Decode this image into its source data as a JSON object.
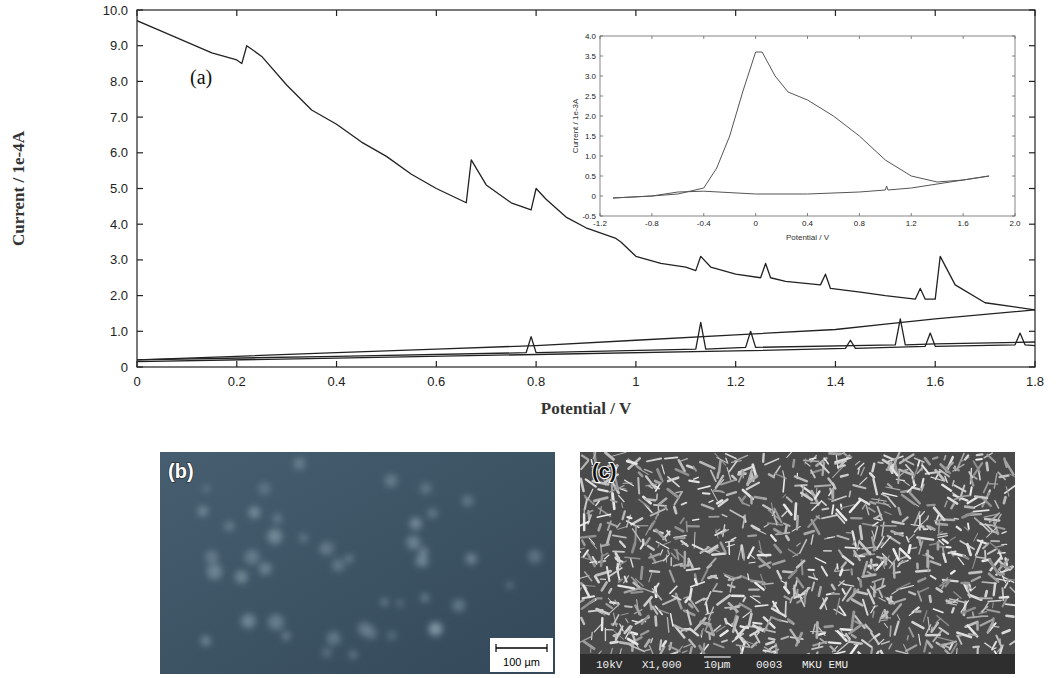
{
  "chart_data": [
    {
      "type": "line",
      "xlabel": "Potential / V",
      "ylabel": "Current / 1e-4A",
      "annotations": [
        "(a)"
      ],
      "xlim": [
        0,
        1.8
      ],
      "ylim": [
        0,
        10
      ],
      "xticks": [
        0,
        0.2,
        0.4,
        0.6,
        0.8,
        1.0,
        1.2,
        1.4,
        1.6,
        1.8
      ],
      "yticks": [
        0,
        {
          "value": 1,
          "label": "1.0"
        },
        {
          "value": 2,
          "label": "2.0"
        },
        {
          "value": 3,
          "label": "3.0"
        },
        {
          "value": 4,
          "label": "4.0"
        },
        {
          "value": 5,
          "label": "5.0"
        },
        {
          "value": 6,
          "label": "6.0"
        },
        {
          "value": 7,
          "label": "7.0"
        },
        {
          "value": 8,
          "label": "8.0"
        },
        {
          "value": 9,
          "label": "9.0"
        },
        {
          "value": 10,
          "label": "10.0"
        }
      ],
      "grid": false,
      "series": [
        {
          "color": "#222222",
          "x": [
            0,
            0.05,
            0.1,
            0.15,
            0.2,
            0.21,
            0.22,
            0.25,
            0.3,
            0.35,
            0.4,
            0.45,
            0.5,
            0.55,
            0.6,
            0.66,
            0.67,
            0.7,
            0.75,
            0.79,
            0.8,
            0.82,
            0.86,
            0.9,
            0.96,
            0.97,
            1.0,
            1.05,
            1.1,
            1.12,
            1.13,
            1.15,
            1.2,
            1.25,
            1.26,
            1.27,
            1.3,
            1.37,
            1.38,
            1.39,
            1.45,
            1.5,
            1.56,
            1.57,
            1.58,
            1.6,
            1.61,
            1.64,
            1.7,
            1.8
          ],
          "values": [
            9.7,
            9.4,
            9.1,
            8.8,
            8.6,
            8.5,
            9.0,
            8.7,
            7.9,
            7.2,
            6.8,
            6.3,
            5.9,
            5.4,
            5.0,
            4.6,
            5.8,
            5.1,
            4.6,
            4.4,
            5.0,
            4.7,
            4.2,
            3.9,
            3.6,
            3.5,
            3.1,
            2.9,
            2.8,
            2.7,
            3.1,
            2.8,
            2.6,
            2.5,
            2.9,
            2.5,
            2.4,
            2.3,
            2.6,
            2.2,
            2.1,
            2.0,
            1.9,
            2.2,
            1.9,
            1.9,
            3.1,
            2.3,
            1.8,
            1.6
          ]
        },
        {
          "color": "#222222",
          "x": [
            1.8,
            1.6,
            1.5,
            1.4,
            1.2,
            1.0,
            0.8,
            0.6,
            0.4,
            0.2,
            0
          ],
          "values": [
            1.6,
            1.35,
            1.2,
            1.05,
            0.9,
            0.75,
            0.6,
            0.5,
            0.4,
            0.3,
            0.2
          ]
        },
        {
          "color": "#222222",
          "x": [
            0,
            0.4,
            0.78,
            0.79,
            0.8,
            1.12,
            1.13,
            1.14,
            1.22,
            1.23,
            1.24,
            1.52,
            1.53,
            1.54,
            1.6,
            1.8
          ],
          "values": [
            0.2,
            0.3,
            0.4,
            0.85,
            0.4,
            0.5,
            1.25,
            0.5,
            0.55,
            1.0,
            0.55,
            0.62,
            1.35,
            0.62,
            0.65,
            0.7
          ]
        },
        {
          "color": "#222222",
          "x": [
            0,
            0.4,
            0.8,
            1.2,
            1.42,
            1.43,
            1.44,
            1.58,
            1.59,
            1.6,
            1.76,
            1.77,
            1.78,
            1.8
          ],
          "values": [
            0.15,
            0.25,
            0.35,
            0.45,
            0.52,
            0.75,
            0.52,
            0.58,
            0.95,
            0.58,
            0.62,
            0.95,
            0.62,
            0.6
          ]
        }
      ]
    },
    {
      "type": "line",
      "xlabel": "Potential / V",
      "ylabel": "Current / 1e-3A",
      "xlim": [
        -1.2,
        2.0
      ],
      "ylim": [
        -0.5,
        4.0
      ],
      "xticks": [
        -1.2,
        -0.8,
        -0.4,
        0,
        0.4,
        0.8,
        1.2,
        1.6,
        {
          "value": 2,
          "label": "2.0"
        }
      ],
      "yticks": [
        -0.5,
        0,
        0.5,
        {
          "value": 1,
          "label": "1.0"
        },
        1.5,
        {
          "value": 2,
          "label": "2.0"
        },
        2.5,
        {
          "value": 3,
          "label": "3.0"
        },
        3.5,
        {
          "value": 4,
          "label": "4.0"
        }
      ],
      "grid": false,
      "series": [
        {
          "color": "#555555",
          "x": [
            -1.1,
            -0.8,
            -0.6,
            -0.4,
            -0.3,
            -0.2,
            -0.1,
            0,
            0.05,
            0.15,
            0.25,
            0.4,
            0.6,
            0.8,
            1.0,
            1.2,
            1.4,
            1.6,
            1.8
          ],
          "values": [
            -0.05,
            0.0,
            0.05,
            0.2,
            0.7,
            1.5,
            2.6,
            3.6,
            3.6,
            3.0,
            2.6,
            2.4,
            2.0,
            1.5,
            0.9,
            0.5,
            0.35,
            0.4,
            0.5
          ]
        },
        {
          "color": "#555555",
          "x": [
            -1.1,
            -0.8,
            -0.6,
            -0.4,
            0,
            0.4,
            0.8,
            1.0,
            1.01,
            1.02,
            1.2,
            1.6,
            1.8
          ],
          "values": [
            -0.05,
            0.0,
            0.1,
            0.12,
            0.05,
            0.05,
            0.1,
            0.15,
            0.25,
            0.15,
            0.2,
            0.4,
            0.5
          ]
        }
      ]
    }
  ],
  "images": [
    {
      "label": "(b)",
      "scale_bar": "100 µm"
    },
    {
      "label": "(c)",
      "info_bar": [
        "10kV",
        "X1,000",
        "10µm",
        "0003",
        "MKU EMU"
      ]
    }
  ]
}
